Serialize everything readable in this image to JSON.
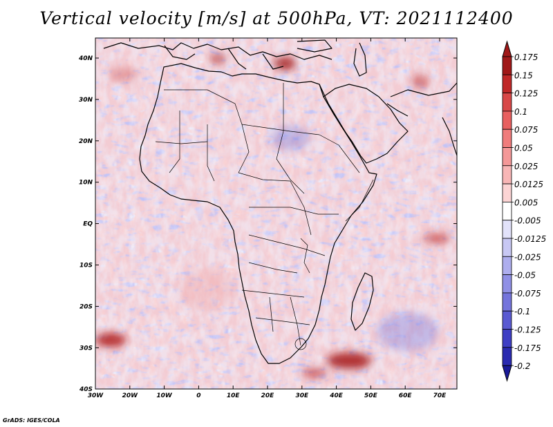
{
  "title": "Vertical velocity [m/s] at 500hPa, VT: 2021112400",
  "credit": "GrADS: IGES/COLA",
  "lat_labels": [
    "40N",
    "30N",
    "20N",
    "10N",
    "EQ",
    "10S",
    "20S",
    "30S",
    "40S"
  ],
  "lon_labels": [
    "30W",
    "20W",
    "10W",
    "0",
    "10E",
    "20E",
    "30E",
    "40E",
    "50E",
    "60E",
    "70E"
  ],
  "colorbar": {
    "levels": [
      "0.175",
      "0.15",
      "0.125",
      "0.1",
      "0.075",
      "0.05",
      "0.025",
      "0.0125",
      "0.005",
      "-0.005",
      "-0.0125",
      "-0.025",
      "-0.05",
      "-0.075",
      "-0.1",
      "-0.125",
      "-0.175",
      "-0.2"
    ],
    "colors": [
      "#a01818",
      "#c02828",
      "#d84848",
      "#e86060",
      "#f07c7c",
      "#f49898",
      "#f8b6b6",
      "#fcd4d4",
      "#ffffff",
      "#e2e2fa",
      "#c8c8f4",
      "#aeaeee",
      "#9090e6",
      "#7474dc",
      "#5a5ad2",
      "#3e3ec4",
      "#2a2ab0",
      "#1a1a98"
    ]
  },
  "colors": {
    "background": "#ffffff",
    "field_base": "#ececfb",
    "coast": "#000000"
  }
}
